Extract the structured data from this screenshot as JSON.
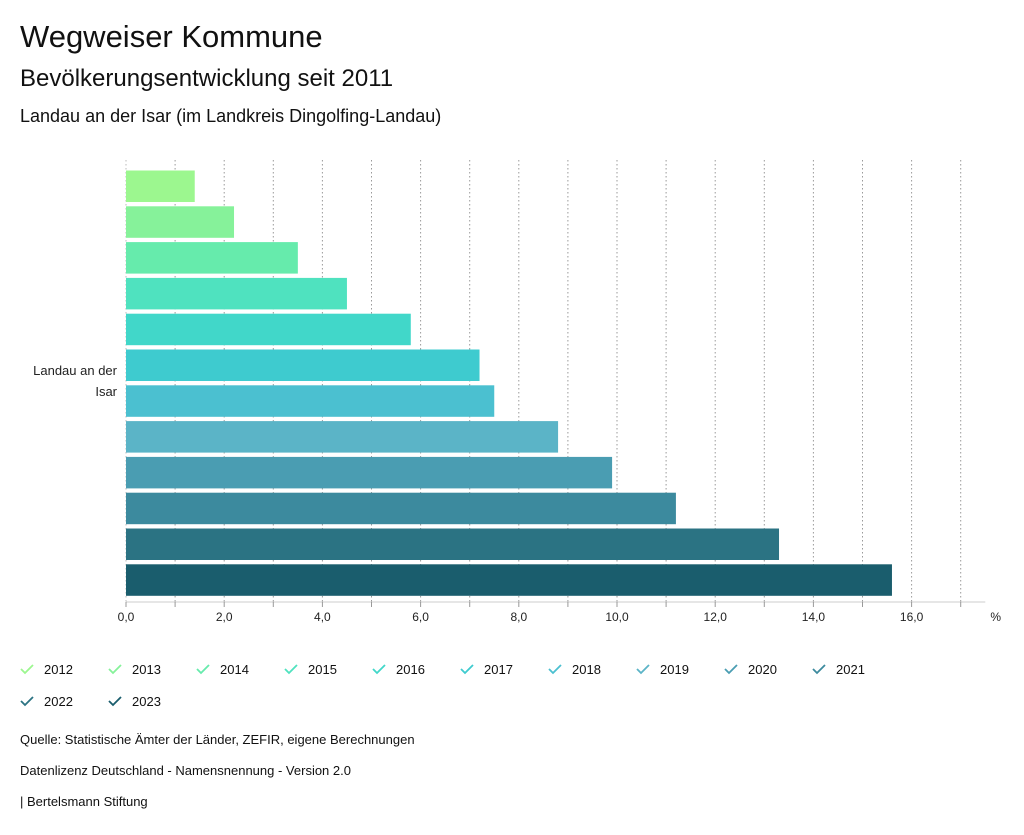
{
  "header": {
    "title": "Wegweiser Kommune",
    "subtitle": "Bevölkerungsentwicklung seit 2011",
    "region": "Landau an der Isar (im Landkreis Dingolfing-Landau)"
  },
  "chart_data": {
    "type": "bar",
    "orientation": "horizontal",
    "category_label": "Landau an der Isar",
    "category_lines": [
      "Landau an der",
      "Isar"
    ],
    "unit_label": "%",
    "xlim": [
      0,
      17.5
    ],
    "ticks": [
      0,
      2,
      4,
      6,
      8,
      10,
      12,
      14,
      16
    ],
    "tick_labels": [
      "0,0",
      "2,0",
      "4,0",
      "6,0",
      "8,0",
      "10,0",
      "12,0",
      "14,0",
      "16,0"
    ],
    "grid": true,
    "series": [
      {
        "name": "2012",
        "value": 1.4,
        "color": "#9cf78f"
      },
      {
        "name": "2013",
        "value": 2.2,
        "color": "#86f29a"
      },
      {
        "name": "2014",
        "value": 3.5,
        "color": "#66ebac"
      },
      {
        "name": "2015",
        "value": 4.5,
        "color": "#4fe2bf"
      },
      {
        "name": "2016",
        "value": 5.8,
        "color": "#41d7c9"
      },
      {
        "name": "2017",
        "value": 7.2,
        "color": "#3ecbcf"
      },
      {
        "name": "2018",
        "value": 7.5,
        "color": "#4bc0d0"
      },
      {
        "name": "2019",
        "value": 8.8,
        "color": "#5bb4c7"
      },
      {
        "name": "2020",
        "value": 9.9,
        "color": "#4a9db2"
      },
      {
        "name": "2021",
        "value": 11.2,
        "color": "#3c8a9e"
      },
      {
        "name": "2022",
        "value": 13.3,
        "color": "#2b7383"
      },
      {
        "name": "2023",
        "value": 15.6,
        "color": "#1a5d6d"
      }
    ]
  },
  "footer": {
    "source": "Quelle: Statistische Ämter der Länder, ZEFIR, eigene Berechnungen",
    "license": "Datenlizenz Deutschland - Namensnennung - Version 2.0",
    "publisher": "| Bertelsmann Stiftung"
  }
}
